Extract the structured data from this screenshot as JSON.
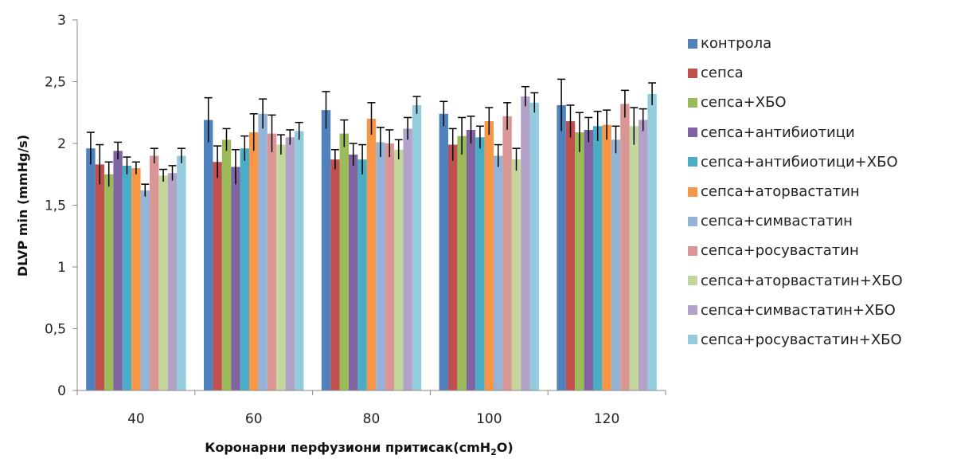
{
  "chart_data": {
    "type": "bar",
    "title": "",
    "ylabel": "DLVP min (mmHg/s)",
    "xlabel_parts": [
      "Коронарни перфузиони притисак(cmH",
      "2",
      "O)"
    ],
    "ylim": [
      0,
      3
    ],
    "yticks": [
      0,
      0.5,
      1,
      1.5,
      2,
      2.5,
      3
    ],
    "ytick_labels": [
      "0",
      "0,5",
      "1",
      "1,5",
      "2",
      "2,5",
      "3"
    ],
    "categories": [
      "40",
      "60",
      "80",
      "100",
      "120"
    ],
    "legend_position": "right",
    "grid": false,
    "error_bars": true,
    "series": [
      {
        "name": "контрола",
        "color": "#4F81BD",
        "values": [
          1.96,
          2.19,
          2.27,
          2.24,
          2.31
        ],
        "errors": [
          0.13,
          0.18,
          0.15,
          0.1,
          0.21
        ]
      },
      {
        "name": "сепса",
        "color": "#C0504D",
        "values": [
          1.83,
          1.85,
          1.87,
          1.99,
          2.18
        ],
        "errors": [
          0.16,
          0.13,
          0.08,
          0.13,
          0.13
        ]
      },
      {
        "name": "сепса+ХБО",
        "color": "#9BBB59",
        "values": [
          1.75,
          2.03,
          2.08,
          2.06,
          2.09
        ],
        "errors": [
          0.1,
          0.09,
          0.11,
          0.15,
          0.16
        ]
      },
      {
        "name": "сепса+антибиотици",
        "color": "#8064A2",
        "values": [
          1.94,
          1.81,
          1.91,
          2.11,
          2.11
        ],
        "errors": [
          0.07,
          0.14,
          0.09,
          0.11,
          0.1
        ]
      },
      {
        "name": "сепса+антибиотици+ХБО",
        "color": "#4BACC6",
        "values": [
          1.82,
          1.96,
          1.87,
          2.05,
          2.14
        ],
        "errors": [
          0.07,
          0.1,
          0.12,
          0.09,
          0.12
        ]
      },
      {
        "name": "сепса+аторвастатин",
        "color": "#F79646",
        "values": [
          1.8,
          2.09,
          2.2,
          2.18,
          2.15
        ],
        "errors": [
          0.05,
          0.15,
          0.13,
          0.11,
          0.12
        ]
      },
      {
        "name": "сепса+симвастатин",
        "color": "#95B3D7",
        "values": [
          1.62,
          2.24,
          2.01,
          1.9,
          2.03
        ],
        "errors": [
          0.05,
          0.12,
          0.12,
          0.09,
          0.11
        ]
      },
      {
        "name": "сепса+росувастатин",
        "color": "#D99694",
        "values": [
          1.9,
          2.08,
          2.0,
          2.22,
          2.32
        ],
        "errors": [
          0.06,
          0.15,
          0.11,
          0.11,
          0.11
        ]
      },
      {
        "name": "сепса+аторвастатин+ХБО",
        "color": "#C3D69B",
        "values": [
          1.74,
          1.99,
          1.95,
          1.87,
          2.14
        ],
        "errors": [
          0.05,
          0.08,
          0.08,
          0.09,
          0.15
        ]
      },
      {
        "name": "сепса+симвастатин+ХБО",
        "color": "#B2A2C7",
        "values": [
          1.76,
          2.05,
          2.12,
          2.38,
          2.19
        ],
        "errors": [
          0.06,
          0.06,
          0.09,
          0.08,
          0.09
        ]
      },
      {
        "name": "сепса+росувастатин+ХБО",
        "color": "#93CDDD",
        "values": [
          1.9,
          2.1,
          2.31,
          2.33,
          2.4
        ],
        "errors": [
          0.06,
          0.07,
          0.07,
          0.08,
          0.09
        ]
      }
    ]
  }
}
